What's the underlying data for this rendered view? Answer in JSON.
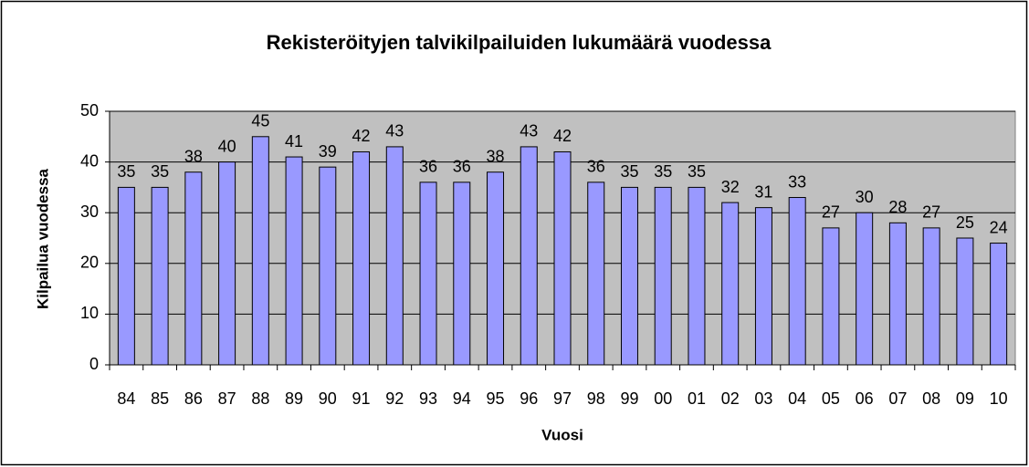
{
  "chart_data": {
    "type": "bar",
    "title": "Rekisteröityjen talvikilpailuiden lukumäärä vuodessa",
    "x_label": "Vuosi",
    "y_label": "Kilpailua vuodessa",
    "categories": [
      "84",
      "85",
      "86",
      "87",
      "88",
      "89",
      "90",
      "91",
      "92",
      "93",
      "94",
      "95",
      "96",
      "97",
      "98",
      "99",
      "00",
      "01",
      "02",
      "03",
      "04",
      "05",
      "06",
      "07",
      "08",
      "09",
      "10"
    ],
    "values": [
      35,
      35,
      38,
      40,
      45,
      41,
      39,
      42,
      43,
      36,
      36,
      38,
      43,
      42,
      36,
      35,
      35,
      35,
      32,
      31,
      33,
      27,
      30,
      28,
      27,
      25,
      24
    ],
    "color": "#9999ff",
    "ylim": [
      0,
      50
    ],
    "yticks": [
      0,
      10,
      20,
      30,
      40,
      50
    ],
    "grid": true
  }
}
